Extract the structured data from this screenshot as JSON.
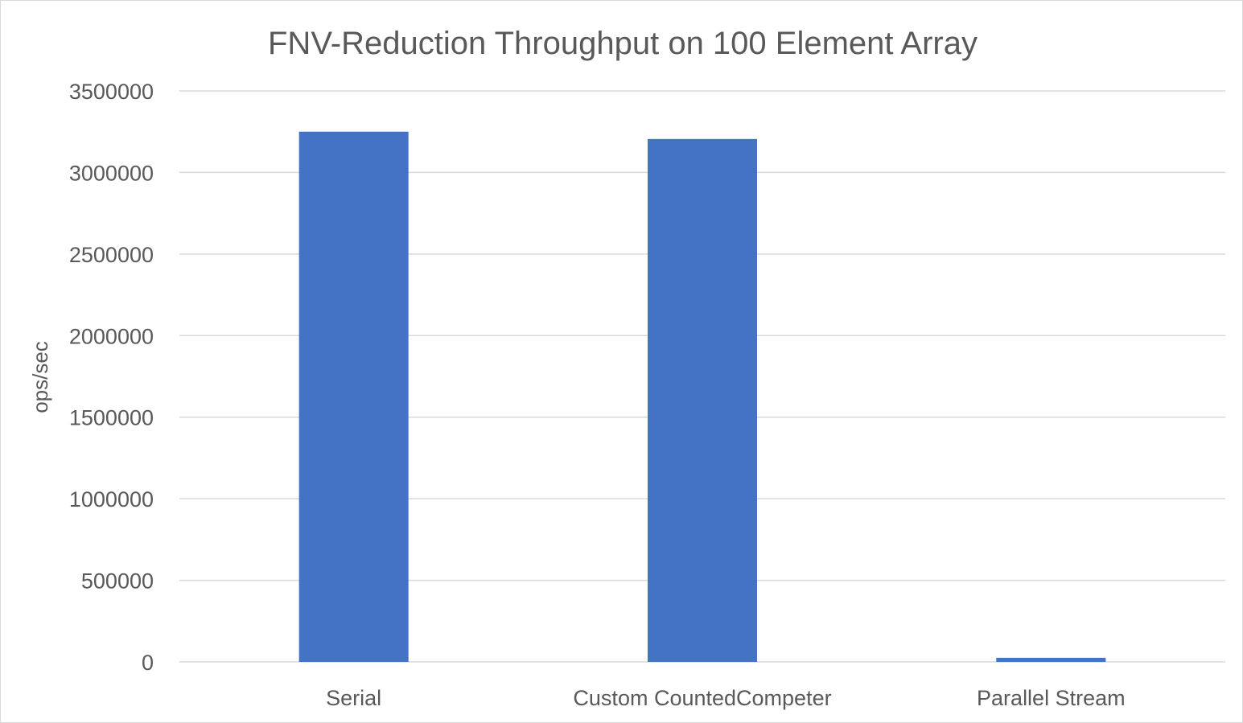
{
  "chart_data": {
    "type": "bar",
    "title": "FNV-Reduction Throughput on 100 Element Array",
    "xlabel": "",
    "ylabel": "ops/sec",
    "categories": [
      "Serial",
      "Custom CountedCompeter",
      "Parallel Stream"
    ],
    "series": [
      {
        "values": [
          3250000,
          3205000,
          25000
        ]
      }
    ],
    "ylim": [
      0,
      3500000
    ],
    "yticks": [
      "0",
      "500000",
      "1000000",
      "1500000",
      "2000000",
      "2500000",
      "3000000",
      "3500000"
    ],
    "grid": true,
    "legend": "none",
    "bar_color": "#4472c4"
  }
}
